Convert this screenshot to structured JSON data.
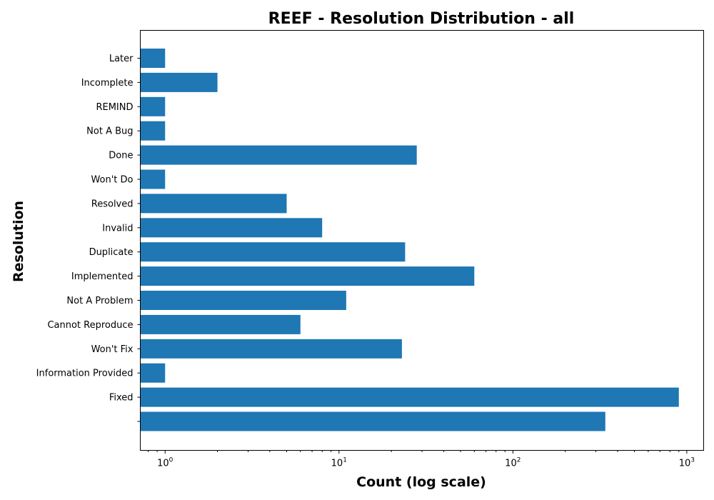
{
  "chart_data": {
    "type": "bar",
    "orientation": "horizontal",
    "title": "REEF - Resolution Distribution - all",
    "xlabel": "Count (log scale)",
    "ylabel": "Resolution",
    "x_scale": "log",
    "xlim": [
      0.72,
      1250
    ],
    "x_ticks": [
      {
        "value": 1,
        "base": "10",
        "exp": "0"
      },
      {
        "value": 10,
        "base": "10",
        "exp": "1"
      },
      {
        "value": 100,
        "base": "10",
        "exp": "2"
      },
      {
        "value": 1000,
        "base": "10",
        "exp": "3"
      }
    ],
    "bar_color": "#1f77b4",
    "grid": false,
    "categories": [
      "",
      "Fixed",
      "Information Provided",
      "Won't Fix",
      "Cannot Reproduce",
      "Not A Problem",
      "Implemented",
      "Duplicate",
      "Invalid",
      "Resolved",
      "Won't Do",
      "Done",
      "Not A Bug",
      "REMIND",
      "Incomplete",
      "Later"
    ],
    "values": [
      340,
      900,
      1,
      23,
      6,
      11,
      60,
      24,
      8,
      5,
      1,
      28,
      1,
      1,
      2,
      1
    ]
  }
}
